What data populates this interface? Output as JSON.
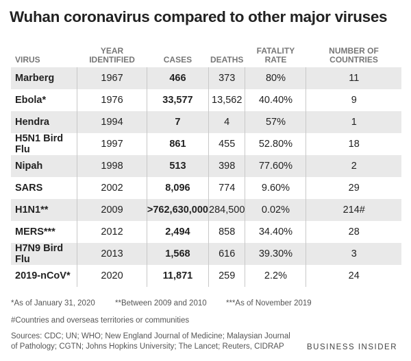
{
  "title": "Wuhan coronavirus compared to other major viruses",
  "table": {
    "header": [
      "VIRUS",
      "YEAR IDENTIFIED",
      "CASES",
      "DEATHS",
      "FATALITY RATE",
      "NUMBER OF COUNTRIES"
    ],
    "rows": [
      [
        "Marberg",
        "1967",
        "466",
        "373",
        "80%",
        "11"
      ],
      [
        "Ebola*",
        "1976",
        "33,577",
        "13,562",
        "40.40%",
        "9"
      ],
      [
        "Hendra",
        "1994",
        "7",
        "4",
        "57%",
        "1"
      ],
      [
        "H5N1 Bird Flu",
        "1997",
        "861",
        "455",
        "52.80%",
        "18"
      ],
      [
        "Nipah",
        "1998",
        "513",
        "398",
        "77.60%",
        "2"
      ],
      [
        "SARS",
        "2002",
        "8,096",
        "774",
        "9.60%",
        "29"
      ],
      [
        "H1N1**",
        "2009",
        ">762,630,000",
        "284,500",
        "0.02%",
        "214#"
      ],
      [
        "MERS***",
        "2012",
        "2,494",
        "858",
        "34.40%",
        "28"
      ],
      [
        "H7N9 Bird Flu",
        "2013",
        "1,568",
        "616",
        "39.30%",
        "3"
      ],
      [
        "2019-nCoV*",
        "2020",
        "11,871",
        "259",
        "2.2%",
        "24"
      ]
    ]
  },
  "footnotes": [
    "*As of January 31, 2020",
    "**Between 2009 and 2010",
    "***As of November 2019"
  ],
  "countries_note": "#Countries and overseas territories or communities",
  "sources": "Sources: CDC; UN; WHO; New England Journal of Medicine; Malaysian Journal of Pathology; CGTN; Johns Hopkins University; The Lancet; Reuters, CIDRAP",
  "brand": "BUSINESS INSIDER"
}
